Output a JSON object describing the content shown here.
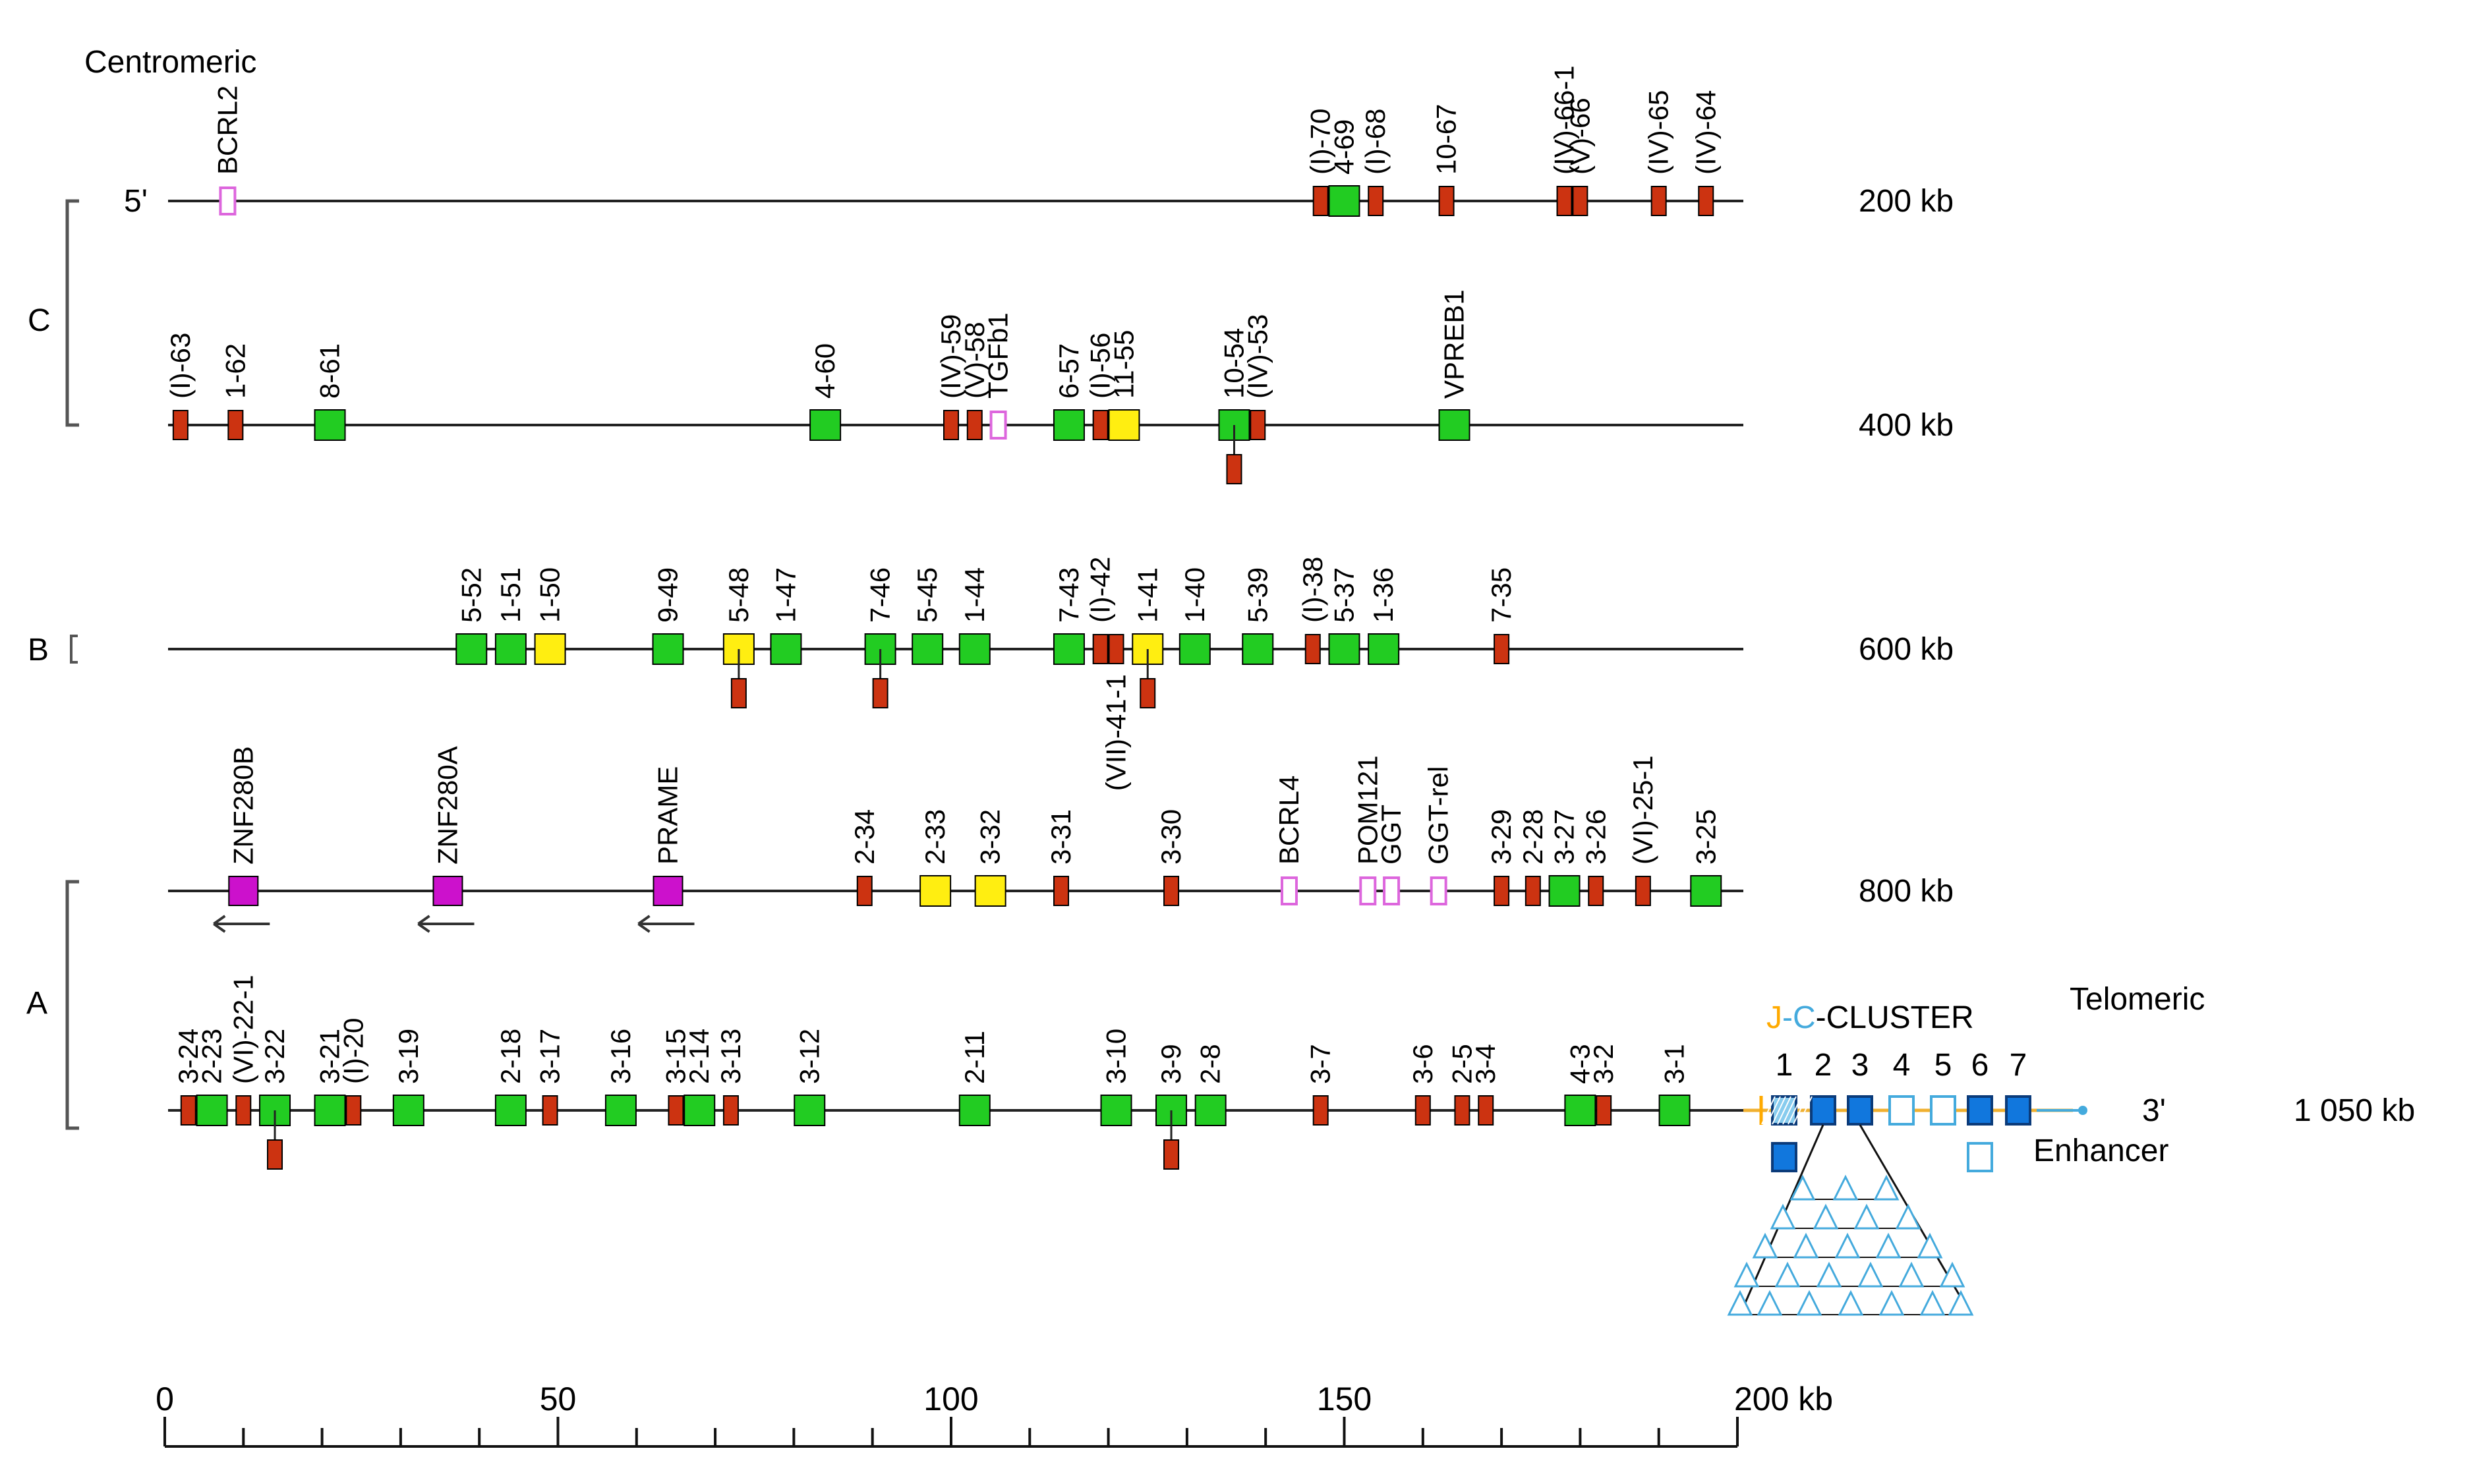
{
  "title_left": "Centromeric",
  "title_right": "Telomeric",
  "region_labels": {
    "c": "C",
    "b": "B",
    "a": "A"
  },
  "colors": {
    "green": "#22cc22",
    "yellow": "#ffee11",
    "red": "#cc3311",
    "magenta": "#cc11cc",
    "pink": "#dd66dd",
    "blue": "#1177dd",
    "blue_light": "#44aadd",
    "orange": "#ffaa00"
  },
  "rows": [
    {
      "scale": "200 kb",
      "end_left": "5'",
      "genes": [
        {
          "label": "BCRL2",
          "pos": 8,
          "type": "pink"
        },
        {
          "label": "(I)-70",
          "pos": 147,
          "type": "red"
        },
        {
          "label": "4-69",
          "pos": 150,
          "type": "green"
        },
        {
          "label": "(I)-68",
          "pos": 154,
          "type": "red"
        },
        {
          "label": "10-67",
          "pos": 163,
          "type": "red"
        },
        {
          "label": "(IV)-66-1",
          "pos": 178,
          "type": "red"
        },
        {
          "label": "(V)-66",
          "pos": 180,
          "type": "red"
        },
        {
          "label": "(IV)-65",
          "pos": 190,
          "type": "red"
        },
        {
          "label": "(IV)-64",
          "pos": 196,
          "type": "red"
        }
      ]
    },
    {
      "scale": "400 kb",
      "genes": [
        {
          "label": "(I)-63",
          "pos": 2,
          "type": "red"
        },
        {
          "label": "1-62",
          "pos": 9,
          "type": "red"
        },
        {
          "label": "8-61",
          "pos": 21,
          "type": "green"
        },
        {
          "label": "4-60",
          "pos": 84,
          "type": "green"
        },
        {
          "label": "(IV)-59",
          "pos": 100,
          "type": "red"
        },
        {
          "label": "(V)-58",
          "pos": 103,
          "type": "red"
        },
        {
          "label": "TGFb1",
          "pos": 106,
          "type": "pink"
        },
        {
          "label": "6-57",
          "pos": 115,
          "type": "green"
        },
        {
          "label": "(I)-56",
          "pos": 119,
          "type": "red"
        },
        {
          "label": "11-55",
          "pos": 122,
          "type": "yellow"
        },
        {
          "label": "10-54",
          "pos": 136,
          "type": "green"
        },
        {
          "label": "(IV)-53",
          "pos": 139,
          "type": "red"
        },
        {
          "label": "",
          "pos": 136,
          "type": "red",
          "below": true
        },
        {
          "label": "VPREB1",
          "pos": 164,
          "type": "green"
        }
      ]
    },
    {
      "scale": "600 kb",
      "genes": [
        {
          "label": "5-52",
          "pos": 39,
          "type": "green"
        },
        {
          "label": "1-51",
          "pos": 44,
          "type": "green"
        },
        {
          "label": "1-50",
          "pos": 49,
          "type": "yellow"
        },
        {
          "label": "9-49",
          "pos": 64,
          "type": "green"
        },
        {
          "label": "5-48",
          "pos": 73,
          "type": "yellow"
        },
        {
          "label": "",
          "pos": 73,
          "type": "red",
          "below": true
        },
        {
          "label": "1-47",
          "pos": 79,
          "type": "green"
        },
        {
          "label": "7-46",
          "pos": 91,
          "type": "green"
        },
        {
          "label": "",
          "pos": 91,
          "type": "red",
          "below": true
        },
        {
          "label": "5-45",
          "pos": 97,
          "type": "green"
        },
        {
          "label": "1-44",
          "pos": 103,
          "type": "green"
        },
        {
          "label": "7-43",
          "pos": 115,
          "type": "green"
        },
        {
          "label": "(I)-42",
          "pos": 119,
          "type": "red"
        },
        {
          "label": "(VII)-41-1",
          "pos": 121,
          "type": "red",
          "label_below": true
        },
        {
          "label": "1-41",
          "pos": 125,
          "type": "yellow"
        },
        {
          "label": "",
          "pos": 125,
          "type": "red",
          "below": true
        },
        {
          "label": "1-40",
          "pos": 131,
          "type": "green"
        },
        {
          "label": "5-39",
          "pos": 139,
          "type": "green"
        },
        {
          "label": "(I)-38",
          "pos": 146,
          "type": "red"
        },
        {
          "label": "5-37",
          "pos": 150,
          "type": "green"
        },
        {
          "label": "1-36",
          "pos": 155,
          "type": "green"
        },
        {
          "label": "7-35",
          "pos": 170,
          "type": "red"
        }
      ]
    },
    {
      "scale": "800 kb",
      "genes": [
        {
          "label": "ZNF280B",
          "pos": 10,
          "type": "magenta",
          "arrow": true
        },
        {
          "label": "ZNF280A",
          "pos": 36,
          "type": "magenta",
          "arrow": true
        },
        {
          "label": "PRAME",
          "pos": 64,
          "type": "magenta",
          "arrow": true
        },
        {
          "label": "2-34",
          "pos": 89,
          "type": "red"
        },
        {
          "label": "2-33",
          "pos": 98,
          "type": "yellow"
        },
        {
          "label": "3-32",
          "pos": 105,
          "type": "yellow"
        },
        {
          "label": "3-31",
          "pos": 114,
          "type": "red"
        },
        {
          "label": "3-30",
          "pos": 128,
          "type": "red"
        },
        {
          "label": "BCRL4",
          "pos": 143,
          "type": "pink"
        },
        {
          "label": "POM121",
          "pos": 153,
          "type": "pink"
        },
        {
          "label": "GGT",
          "pos": 156,
          "type": "pink"
        },
        {
          "label": "GGT-rel",
          "pos": 162,
          "type": "pink"
        },
        {
          "label": "3-29",
          "pos": 170,
          "type": "red"
        },
        {
          "label": "2-28",
          "pos": 174,
          "type": "red"
        },
        {
          "label": "3-27",
          "pos": 178,
          "type": "green"
        },
        {
          "label": "3-26",
          "pos": 182,
          "type": "red"
        },
        {
          "label": "(VI)-25-1",
          "pos": 188,
          "type": "red"
        },
        {
          "label": "3-25",
          "pos": 196,
          "type": "green"
        }
      ]
    },
    {
      "scale": "1 050 kb",
      "end_right": "3'",
      "genes": [
        {
          "label": "3-24",
          "pos": 3,
          "type": "red"
        },
        {
          "label": "2-23",
          "pos": 6,
          "type": "green"
        },
        {
          "label": "(VI)-22-1",
          "pos": 10,
          "type": "red"
        },
        {
          "label": "3-22",
          "pos": 14,
          "type": "green"
        },
        {
          "label": "",
          "pos": 14,
          "type": "red",
          "below": true
        },
        {
          "label": "3-21",
          "pos": 21,
          "type": "green"
        },
        {
          "label": "(I)-20",
          "pos": 24,
          "type": "red"
        },
        {
          "label": "3-19",
          "pos": 31,
          "type": "green"
        },
        {
          "label": "2-18",
          "pos": 44,
          "type": "green"
        },
        {
          "label": "3-17",
          "pos": 49,
          "type": "red"
        },
        {
          "label": "3-16",
          "pos": 58,
          "type": "green"
        },
        {
          "label": "3-15",
          "pos": 65,
          "type": "red"
        },
        {
          "label": "2-14",
          "pos": 68,
          "type": "green"
        },
        {
          "label": "3-13",
          "pos": 72,
          "type": "red"
        },
        {
          "label": "3-12",
          "pos": 82,
          "type": "green"
        },
        {
          "label": "2-11",
          "pos": 103,
          "type": "green"
        },
        {
          "label": "3-10",
          "pos": 121,
          "type": "green"
        },
        {
          "label": "3-9",
          "pos": 128,
          "type": "green"
        },
        {
          "label": "",
          "pos": 128,
          "type": "red",
          "below": true
        },
        {
          "label": "2-8",
          "pos": 133,
          "type": "green"
        },
        {
          "label": "3-7",
          "pos": 147,
          "type": "red"
        },
        {
          "label": "3-6",
          "pos": 160,
          "type": "red"
        },
        {
          "label": "2-5",
          "pos": 165,
          "type": "red"
        },
        {
          "label": "3-4",
          "pos": 168,
          "type": "red"
        },
        {
          "label": "4-3",
          "pos": 180,
          "type": "green"
        },
        {
          "label": "3-2",
          "pos": 183,
          "type": "red"
        },
        {
          "label": "3-1",
          "pos": 192,
          "type": "green"
        }
      ]
    }
  ],
  "jc_cluster": {
    "j": "J",
    "dash": "-",
    "c": "C",
    "suffix": "-CLUSTER",
    "numbers": [
      "1",
      "2",
      "3",
      "4",
      "5",
      "6",
      "7"
    ],
    "enhancer": "Enhancer"
  },
  "axis": {
    "ticks": [
      "0",
      "50",
      "100",
      "150",
      "200 kb"
    ],
    "range": [
      0,
      200
    ]
  }
}
